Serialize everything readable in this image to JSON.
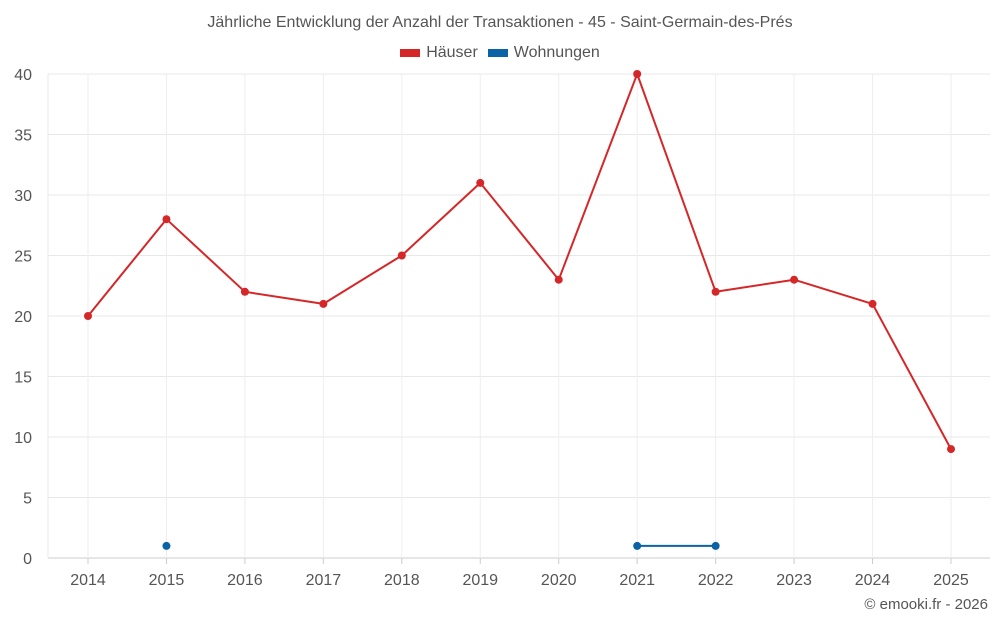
{
  "chart_data": {
    "type": "line",
    "title": "Jährliche Entwicklung der Anzahl der Transaktionen - 45 - Saint-Germain-des-Prés",
    "xlabel": "",
    "ylabel": "",
    "categories": [
      "2014",
      "2015",
      "2016",
      "2017",
      "2018",
      "2019",
      "2020",
      "2021",
      "2022",
      "2023",
      "2024",
      "2025"
    ],
    "ylim": [
      0,
      40
    ],
    "yticks": [
      0,
      5,
      10,
      15,
      20,
      25,
      30,
      35,
      40
    ],
    "grid": true,
    "legend_position": "top-center",
    "series": [
      {
        "name": "Häuser",
        "color": "#d62728",
        "values": [
          20,
          28,
          22,
          21,
          25,
          31,
          23,
          40,
          22,
          23,
          21,
          9
        ]
      },
      {
        "name": "Wohnungen",
        "color": "#0b63a5",
        "values": [
          null,
          1,
          null,
          null,
          null,
          null,
          null,
          1,
          1,
          null,
          null,
          null
        ]
      }
    ]
  },
  "footer": {
    "copyright": "© emooki.fr - 2026"
  }
}
